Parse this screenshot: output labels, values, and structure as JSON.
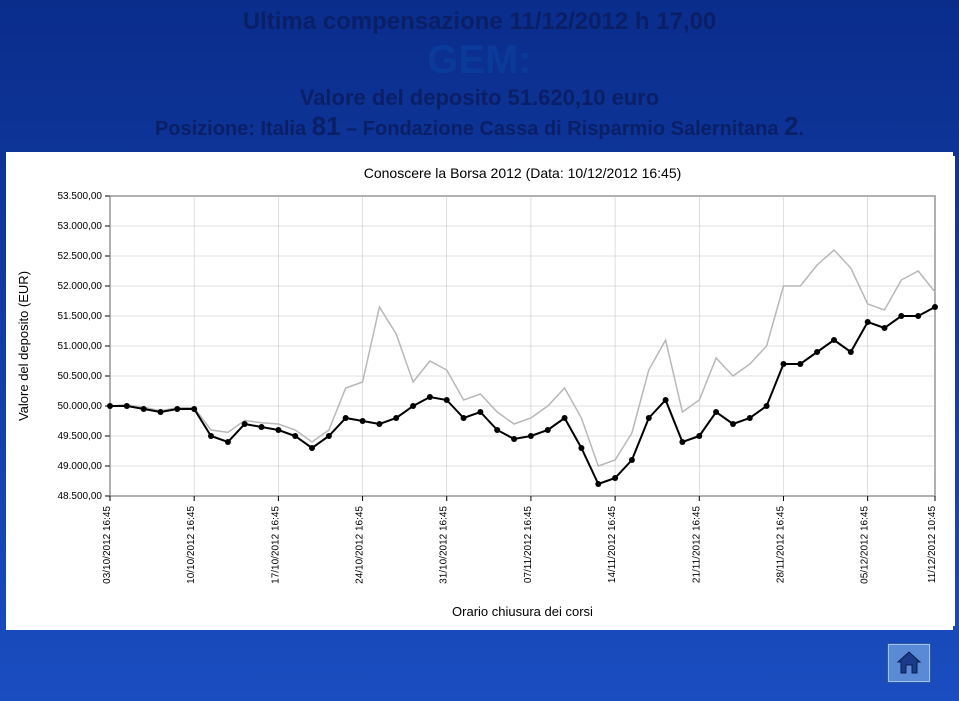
{
  "header": {
    "line1": "Ultima compensazione 11/12/2012 h 17,00",
    "gem": "GEM:",
    "line2_prefix": "Valore del deposito ",
    "line2_value": "51.620,10 euro",
    "line3_prefix": "Posizione: Italia ",
    "line3_rank": "81",
    "line3_sep": " – Fondazione Cassa di Risparmio Salernitana ",
    "line3_rank2": "2",
    "line3_suffix": "."
  },
  "chart": {
    "type": "line",
    "title": "Conoscere la Borsa 2012 (Data: 10/12/2012 16:45)",
    "title_fontsize": 14,
    "ylabel": "Valore del deposito (EUR)",
    "xlabel": "Orario chiusura dei corsi",
    "label_fontsize": 13,
    "background_color": "#ffffff",
    "grid_color": "#c0c0c0",
    "tick_fontsize": 10,
    "ylim": [
      48500,
      53500
    ],
    "yticks": [
      48500,
      49000,
      49500,
      50000,
      50500,
      51000,
      51500,
      52000,
      52500,
      53000,
      53500
    ],
    "ytick_labels": [
      "48.500,00",
      "49.000,00",
      "49.500,00",
      "50.000,00",
      "50.500,00",
      "51.000,00",
      "51.500,00",
      "52.000,00",
      "52.500,00",
      "53.000,00",
      "53.500,00"
    ],
    "xtick_positions": [
      0,
      5,
      10,
      15,
      20,
      25,
      30,
      35,
      40,
      45,
      49
    ],
    "xtick_labels": [
      "03/10/2012 16:45",
      "10/10/2012 16:45",
      "17/10/2012 16:45",
      "24/10/2012 16:45",
      "31/10/2012 16:45",
      "07/11/2012 16:45",
      "14/11/2012 16:45",
      "21/11/2012 16:45",
      "28/11/2012 16:45",
      "05/12/2012 16:45",
      "11/12/2012 10:45"
    ],
    "series": [
      {
        "name": "series-main",
        "color": "#000000",
        "line_width": 2,
        "marker": "circle",
        "marker_size": 3,
        "values": [
          50000,
          50000,
          49950,
          49900,
          49950,
          49950,
          49500,
          49400,
          49700,
          49650,
          49600,
          49500,
          49300,
          49500,
          49800,
          49750,
          49700,
          49800,
          50000,
          50150,
          50100,
          49800,
          49900,
          49600,
          49450,
          49500,
          49600,
          49800,
          49300,
          48700,
          48800,
          49100,
          49800,
          50100,
          49400,
          49500,
          49900,
          49700,
          49800,
          50000,
          50700,
          50700,
          50900,
          51100,
          50900,
          51400,
          51300,
          51500,
          51500,
          51650
        ]
      },
      {
        "name": "series-light",
        "color": "#b8b8b8",
        "line_width": 1.5,
        "marker": "none",
        "values": [
          50000,
          50020,
          49980,
          49920,
          49970,
          49970,
          49600,
          49560,
          49760,
          49720,
          49700,
          49600,
          49400,
          49600,
          50300,
          50400,
          51650,
          51200,
          50400,
          50750,
          50600,
          50100,
          50200,
          49900,
          49700,
          49800,
          50000,
          50300,
          49800,
          49000,
          49100,
          49550,
          50600,
          51100,
          49900,
          50100,
          50800,
          50500,
          50700,
          51000,
          52000,
          52000,
          52350,
          52600,
          52300,
          51700,
          51600,
          52100,
          52250,
          51900
        ]
      }
    ]
  },
  "colors": {
    "page_bg_top": "#0a2d8c",
    "page_bg_bottom": "#1a4dc0",
    "header_text": "#0a1f66",
    "home_btn_bg": "#5a8ad6",
    "home_btn_border": "#2a5aa0"
  }
}
